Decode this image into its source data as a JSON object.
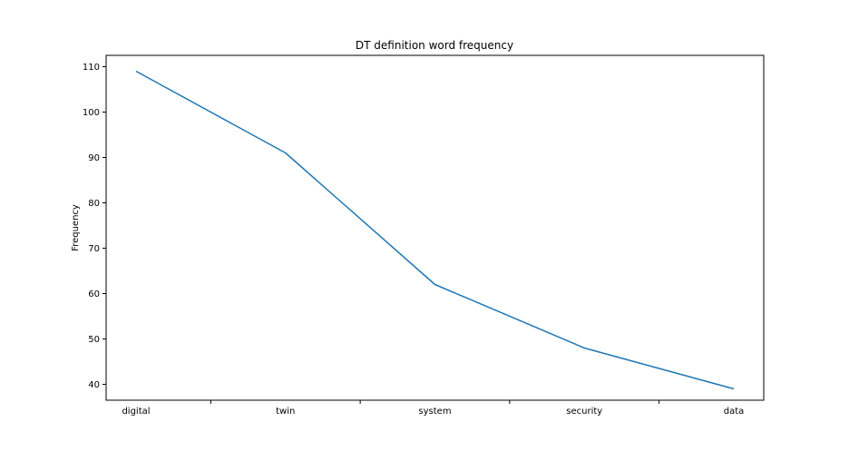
{
  "chart_data": {
    "type": "line",
    "title": "DT definition word frequency",
    "xlabel": "",
    "ylabel": "Frequency",
    "categories": [
      "digital",
      "twin",
      "system",
      "security",
      "data"
    ],
    "series": [
      {
        "values": [
          109,
          91,
          62,
          48,
          39
        ],
        "color": "#1f77b4"
      }
    ],
    "ylim": [
      36.5,
      112.5
    ],
    "yticks": [
      40,
      50,
      60,
      70,
      80,
      90,
      100,
      110
    ],
    "minor_xticks": true,
    "grid": false,
    "legend": "none"
  }
}
